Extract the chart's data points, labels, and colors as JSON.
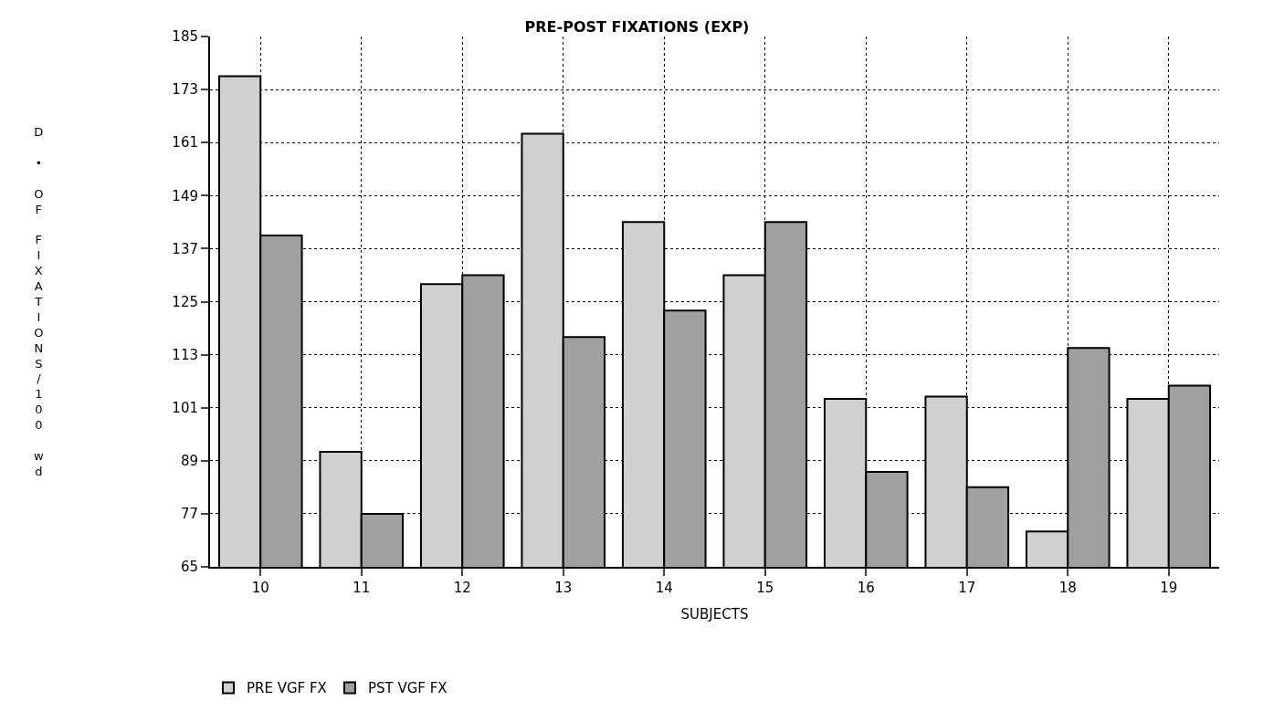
{
  "chart_data": {
    "type": "bar",
    "title": "PRE-POST FIXATIONS (EXP)",
    "xlabel": "SUBJECTS",
    "ylabel": "D • OF FIXATIONS/100 wd",
    "categories": [
      "10",
      "11",
      "12",
      "13",
      "14",
      "15",
      "16",
      "17",
      "18",
      "19"
    ],
    "series": [
      {
        "name": "PRE VGF FX",
        "color": "#d0d0d0",
        "values": [
          176,
          91,
          129,
          163,
          143,
          131,
          103,
          103.5,
          73,
          103
        ]
      },
      {
        "name": "PST VGF FX",
        "color": "#a0a0a0",
        "values": [
          140,
          77,
          131,
          117,
          123,
          143,
          86.5,
          83,
          114.5,
          106
        ]
      }
    ],
    "ylim": [
      65,
      185
    ],
    "yticks": [
      65,
      77,
      89,
      101,
      113,
      125,
      137,
      149,
      161,
      173,
      185
    ],
    "grid": true,
    "legend": "bottom left"
  }
}
